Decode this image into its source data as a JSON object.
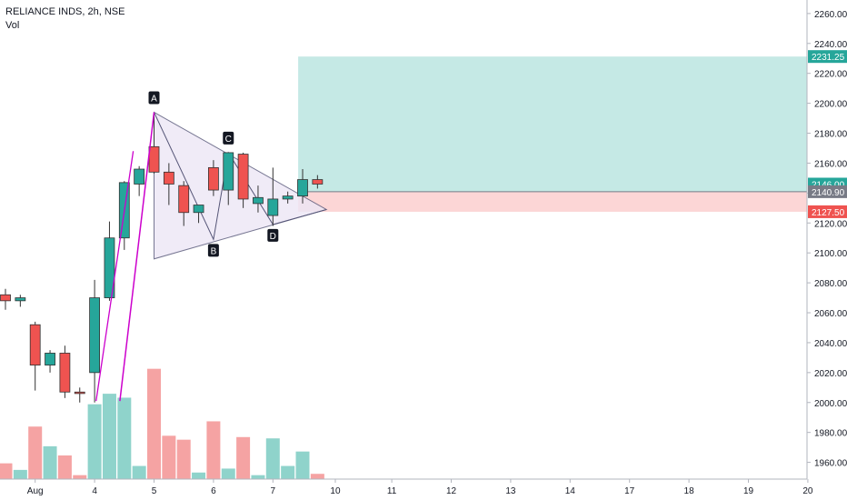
{
  "header": {
    "symbol_line": "RELIANCE INDS, 2h, NSE",
    "volume_label": "Vol"
  },
  "colors": {
    "up": "#26a69a",
    "down": "#ef5350",
    "vol_up": "#8fd3cb",
    "vol_down": "#f5a3a3",
    "pattern_fill": "#ede7f6",
    "pattern_line": "#555577",
    "zigzag": "#cc00cc",
    "target_fill": "#b2e2dc",
    "stop_fill": "#fcd2d2",
    "axis_text": "#131722",
    "grid": "#e0e3eb"
  },
  "chart_data": {
    "type": "candlestick",
    "y_axis": {
      "range": [
        1946,
        2266
      ],
      "ticks": [
        1960,
        1980,
        2000,
        2020,
        2040,
        2060,
        2080,
        2100,
        2120,
        2140,
        2160,
        2180,
        2200,
        2220,
        2240,
        2260
      ],
      "tick_labels": [
        "1960.00",
        "1980.00",
        "2000.00",
        "2020.00",
        "2040.00",
        "2060.00",
        "2080.00",
        "2100.00",
        "2120.00",
        "2140.00",
        "2160.00",
        "2180.00",
        "2200.00",
        "2220.00",
        "2240.00",
        "2260.00"
      ]
    },
    "x_axis": {
      "labels": [
        {
          "text": "Aug",
          "bar": 2
        },
        {
          "text": "4",
          "bar": 6
        },
        {
          "text": "5",
          "bar": 10
        },
        {
          "text": "6",
          "bar": 14
        },
        {
          "text": "7",
          "bar": 18
        },
        {
          "text": "10",
          "bar": 22.2
        },
        {
          "text": "11",
          "bar": 26
        },
        {
          "text": "12",
          "bar": 30
        },
        {
          "text": "13",
          "bar": 34
        },
        {
          "text": "14",
          "bar": 38
        },
        {
          "text": "17",
          "bar": 42
        },
        {
          "text": "18",
          "bar": 46
        },
        {
          "text": "19",
          "bar": 50
        },
        {
          "text": "20",
          "bar": 54
        }
      ]
    },
    "candles": [
      {
        "o": 2072,
        "h": 2076,
        "l": 2062,
        "c": 2068,
        "v": 12
      },
      {
        "o": 2068,
        "h": 2072,
        "l": 2064,
        "c": 2070,
        "v": 7
      },
      {
        "o": 2052,
        "h": 2054,
        "l": 2008,
        "c": 2025,
        "v": 40
      },
      {
        "o": 2025,
        "h": 2035,
        "l": 2020,
        "c": 2033,
        "v": 25
      },
      {
        "o": 2033,
        "h": 2038,
        "l": 2003,
        "c": 2007,
        "v": 18
      },
      {
        "o": 2007,
        "h": 2010,
        "l": 2000,
        "c": 2006,
        "v": 3
      },
      {
        "o": 2020,
        "h": 2082,
        "l": 2000,
        "c": 2070,
        "v": 57
      },
      {
        "o": 2070,
        "h": 2121,
        "l": 2068,
        "c": 2110,
        "v": 65
      },
      {
        "o": 2110,
        "h": 2148,
        "l": 2102,
        "c": 2147,
        "v": 62
      },
      {
        "o": 2146,
        "h": 2158,
        "l": 2138,
        "c": 2156,
        "v": 10
      },
      {
        "o": 2171,
        "h": 2193,
        "l": 2153,
        "c": 2154,
        "v": 84
      },
      {
        "o": 2154,
        "h": 2160,
        "l": 2132,
        "c": 2146,
        "v": 33
      },
      {
        "o": 2145,
        "h": 2148,
        "l": 2118,
        "c": 2127,
        "v": 30
      },
      {
        "o": 2127,
        "h": 2132,
        "l": 2120,
        "c": 2132,
        "v": 5
      },
      {
        "o": 2157,
        "h": 2162,
        "l": 2138,
        "c": 2142,
        "v": 44
      },
      {
        "o": 2142,
        "h": 2167,
        "l": 2132,
        "c": 2167,
        "v": 8
      },
      {
        "o": 2166,
        "h": 2167,
        "l": 2130,
        "c": 2136,
        "v": 32
      },
      {
        "o": 2133,
        "h": 2145,
        "l": 2127,
        "c": 2137,
        "v": 3
      },
      {
        "o": 2125,
        "h": 2157,
        "l": 2118,
        "c": 2136,
        "v": 31
      },
      {
        "o": 2136,
        "h": 2141,
        "l": 2133,
        "c": 2138,
        "v": 10
      },
      {
        "o": 2138,
        "h": 2156,
        "l": 2133,
        "c": 2149,
        "v": 21
      },
      {
        "o": 2149,
        "h": 2152,
        "l": 2143,
        "c": 2146,
        "v": 4
      }
    ],
    "volume_axis_max": 90,
    "pattern": {
      "points": [
        {
          "label": "",
          "bar": 7.7,
          "price": 2001
        },
        {
          "label": "A",
          "bar": 10,
          "price": 2194
        },
        {
          "label": "B",
          "bar": 14,
          "price": 2109
        },
        {
          "label": "C",
          "bar": 15,
          "price": 2167
        },
        {
          "label": "D",
          "bar": 18,
          "price": 2119
        },
        {
          "label": "",
          "bar": 21.4,
          "price": 2129
        }
      ],
      "apex": {
        "bar": 21.6,
        "price": 2129
      },
      "lower_left": {
        "bar": 10,
        "price": 2096
      }
    },
    "position": {
      "start_bar": 19.7,
      "entry": 2140.9,
      "target": 2231.25,
      "stop": 2127.5
    },
    "price_tags": [
      {
        "label": "2231.25",
        "value": 2231.25,
        "color": "#26a69a"
      },
      {
        "label": "2146.00",
        "value": 2146.0,
        "color": "#26a69a"
      },
      {
        "label": "2140.90",
        "value": 2140.9,
        "color": "#787b86"
      },
      {
        "label": "2127.50",
        "value": 2127.5,
        "color": "#ef5350"
      }
    ]
  }
}
